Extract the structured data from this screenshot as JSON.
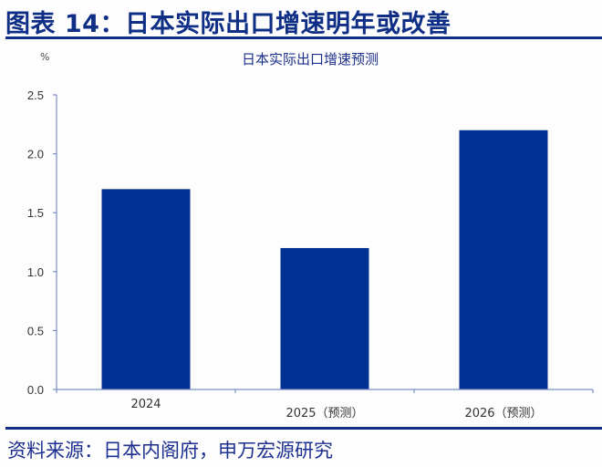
{
  "figure_title": "图表 14：日本实际出口增速明年或改善",
  "source": "资料来源：日本内阁府，申万宏源研究",
  "colors": {
    "bar": "#003093",
    "accent": "#0f2e86",
    "axis": "#7b8fc6"
  },
  "chart_data": {
    "type": "bar",
    "title": "日本实际出口增速预测",
    "xlabel": "",
    "ylabel": "%",
    "categories": [
      "2024",
      "2025（预测）",
      "2026（预测）"
    ],
    "values": [
      1.7,
      1.2,
      2.2
    ],
    "ylim": [
      0,
      2.5
    ],
    "yticks": [
      "0.0",
      "0.5",
      "1.0",
      "1.5",
      "2.0",
      "2.5"
    ],
    "grid": false,
    "legend": null
  }
}
